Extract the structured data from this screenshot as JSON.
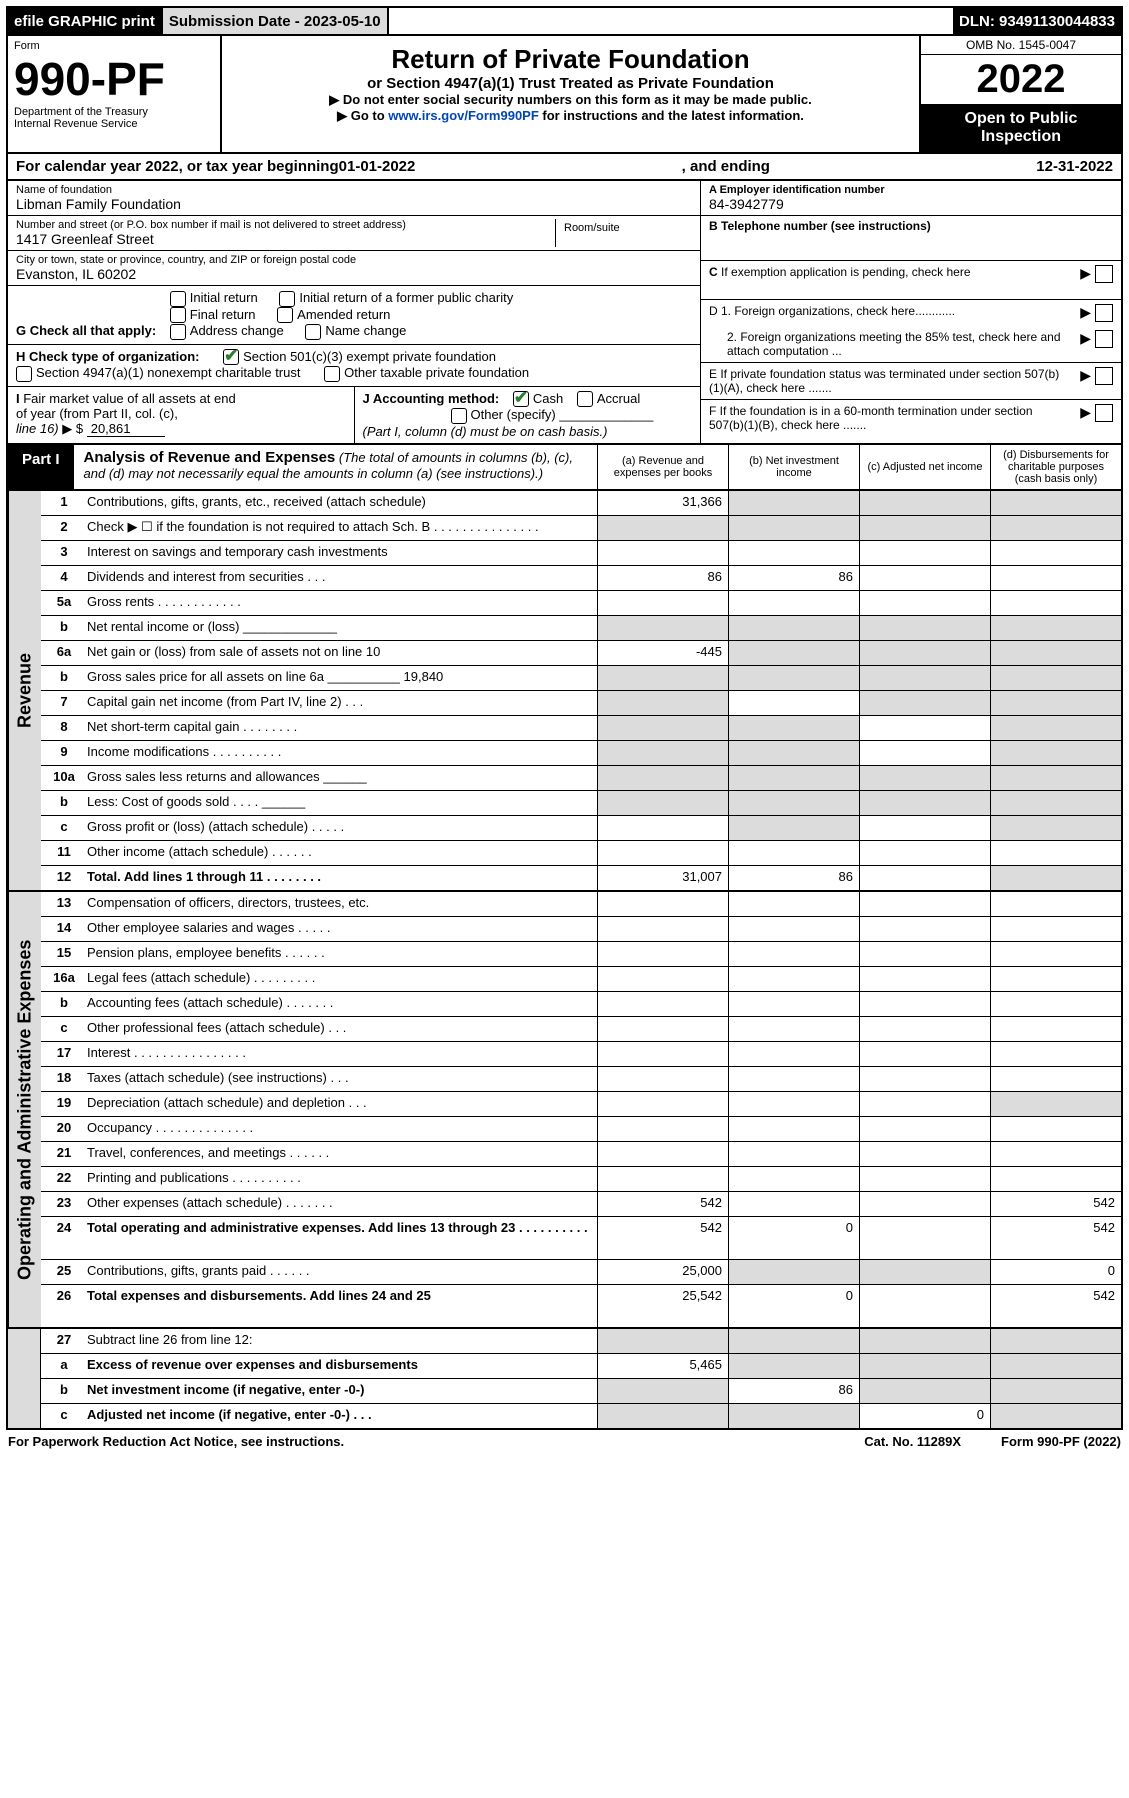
{
  "topbar": {
    "efile": "efile GRAPHIC print",
    "submission_lbl": "Submission Date - 2023-05-10",
    "dln_lbl": "DLN: 93491130044833"
  },
  "header": {
    "form_lbl": "Form",
    "form_num": "990-PF",
    "dept": "Department of the Treasury",
    "irs": "Internal Revenue Service",
    "title": "Return of Private Foundation",
    "subtitle": "or Section 4947(a)(1) Trust Treated as Private Foundation",
    "note1": "▶ Do not enter social security numbers on this form as it may be made public.",
    "note2_pre": "▶ Go to ",
    "note2_link": "www.irs.gov/Form990PF",
    "note2_post": " for instructions and the latest information.",
    "omb": "OMB No. 1545-0047",
    "year": "2022",
    "open": "Open to Public Inspection"
  },
  "calyear": {
    "pre": "For calendar year 2022, or tax year beginning ",
    "begin": "01-01-2022",
    "mid": ", and ending ",
    "end": "12-31-2022"
  },
  "entity": {
    "name_lbl": "Name of foundation",
    "name": "Libman Family Foundation",
    "addr_lbl": "Number and street (or P.O. box number if mail is not delivered to street address)",
    "addr": "1417 Greenleaf Street",
    "room_lbl": "Room/suite",
    "city_lbl": "City or town, state or province, country, and ZIP or foreign postal code",
    "city": "Evanston, IL  60202",
    "ein_lbl": "A Employer identification number",
    "ein": "84-3942779",
    "tel_lbl": "B Telephone number (see instructions)",
    "c_lbl": "C If exemption application is pending, check here",
    "d1": "D 1. Foreign organizations, check here............",
    "d2": "2. Foreign organizations meeting the 85% test, check here and attach computation ...",
    "e_lbl": "E If private foundation status was terminated under section 507(b)(1)(A), check here .......",
    "f_lbl": "F If the foundation is in a 60-month termination under section 507(b)(1)(B), check here ......."
  },
  "g": {
    "lbl": "G Check all that apply:",
    "opts": [
      "Initial return",
      "Final return",
      "Address change",
      "Initial return of a former public charity",
      "Amended return",
      "Name change"
    ]
  },
  "h": {
    "lbl": "H Check type of organization:",
    "o1": "Section 501(c)(3) exempt private foundation",
    "o2": "Section 4947(a)(1) nonexempt charitable trust",
    "o3": "Other taxable private foundation"
  },
  "i": {
    "lbl": "I Fair market value of all assets at end of year (from Part II, col. (c), line 16) ▶ $",
    "val": "20,861"
  },
  "j": {
    "lbl": "J Accounting method:",
    "o1": "Cash",
    "o2": "Accrual",
    "o3": "Other (specify)",
    "note": "(Part I, column (d) must be on cash basis.)"
  },
  "part1": {
    "tag": "Part I",
    "title": "Analysis of Revenue and Expenses",
    "note": " (The total of amounts in columns (b), (c), and (d) may not necessarily equal the amounts in column (a) (see instructions).)",
    "col_a": "(a) Revenue and expenses per books",
    "col_b": "(b) Net investment income",
    "col_c": "(c) Adjusted net income",
    "col_d": "(d) Disbursements for charitable purposes (cash basis only)"
  },
  "rows": [
    {
      "n": "1",
      "d": "Contributions, gifts, grants, etc., received (attach schedule)",
      "a": "31,366",
      "shade": [
        "b",
        "c",
        "d"
      ]
    },
    {
      "n": "2",
      "d": "Check ▶ ☐ if the foundation is not required to attach Sch. B    .   .   .   .   .   .   .   .   .   .   .   .   .   .   .",
      "shade": [
        "a",
        "b",
        "c",
        "d"
      ]
    },
    {
      "n": "3",
      "d": "Interest on savings and temporary cash investments"
    },
    {
      "n": "4",
      "d": "Dividends and interest from securities    .   .   .",
      "a": "86",
      "b": "86"
    },
    {
      "n": "5a",
      "d": "Gross rents    .   .   .   .   .   .   .   .   .   .   .   ."
    },
    {
      "n": "b",
      "d": "Net rental income or (loss)  _____________",
      "shade": [
        "a",
        "b",
        "c",
        "d"
      ]
    },
    {
      "n": "6a",
      "d": "Net gain or (loss) from sale of assets not on line 10",
      "a": "-445",
      "shade": [
        "b",
        "c",
        "d"
      ]
    },
    {
      "n": "b",
      "d": "Gross sales price for all assets on line 6a __________ 19,840",
      "shade": [
        "a",
        "b",
        "c",
        "d"
      ]
    },
    {
      "n": "7",
      "d": "Capital gain net income (from Part IV, line 2)    .   .   .",
      "shade": [
        "a",
        "c",
        "d"
      ]
    },
    {
      "n": "8",
      "d": "Net short-term capital gain   .   .   .   .   .   .   .   .",
      "shade": [
        "a",
        "b",
        "d"
      ]
    },
    {
      "n": "9",
      "d": "Income modifications   .   .   .   .   .   .   .   .   .   .",
      "shade": [
        "a",
        "b",
        "d"
      ]
    },
    {
      "n": "10a",
      "d": "Gross sales less returns and allowances   ______",
      "shade": [
        "a",
        "b",
        "c",
        "d"
      ]
    },
    {
      "n": "b",
      "d": "Less: Cost of goods sold     .   .   .   .   ______",
      "shade": [
        "a",
        "b",
        "c",
        "d"
      ]
    },
    {
      "n": "c",
      "d": "Gross profit or (loss) (attach schedule)    .   .   .   .   .",
      "shade": [
        "b",
        "d"
      ]
    },
    {
      "n": "11",
      "d": "Other income (attach schedule)    .   .   .   .   .   ."
    },
    {
      "n": "12",
      "d": "Total. Add lines 1 through 11   .   .   .   .   .   .   .   .",
      "bold": true,
      "a": "31,007",
      "b": "86",
      "shade": [
        "d"
      ]
    }
  ],
  "rows_exp": [
    {
      "n": "13",
      "d": "Compensation of officers, directors, trustees, etc."
    },
    {
      "n": "14",
      "d": "Other employee salaries and wages    .   .   .   .   ."
    },
    {
      "n": "15",
      "d": "Pension plans, employee benefits   .   .   .   .   .   ."
    },
    {
      "n": "16a",
      "d": "Legal fees (attach schedule)  .   .   .   .   .   .   .   .   ."
    },
    {
      "n": "b",
      "d": "Accounting fees (attach schedule)  .   .   .   .   .   .   ."
    },
    {
      "n": "c",
      "d": "Other professional fees (attach schedule)    .   .   ."
    },
    {
      "n": "17",
      "d": "Interest   .   .   .   .   .   .   .   .   .   .   .   .   .   .   .   ."
    },
    {
      "n": "18",
      "d": "Taxes (attach schedule) (see instructions)     .   .   ."
    },
    {
      "n": "19",
      "d": "Depreciation (attach schedule) and depletion    .   .   .",
      "shade": [
        "d"
      ]
    },
    {
      "n": "20",
      "d": "Occupancy   .   .   .   .   .   .   .   .   .   .   .   .   .   ."
    },
    {
      "n": "21",
      "d": "Travel, conferences, and meetings   .   .   .   .   .   ."
    },
    {
      "n": "22",
      "d": "Printing and publications   .   .   .   .   .   .   .   .   .   ."
    },
    {
      "n": "23",
      "d": "Other expenses (attach schedule)   .   .   .   .   .   .   .",
      "a": "542",
      "dd": "542"
    },
    {
      "n": "24",
      "d": "Total operating and administrative expenses. Add lines 13 through 23   .   .   .   .   .   .   .   .   .   .",
      "bold": true,
      "a": "542",
      "b": "0",
      "dd": "542",
      "tall": true
    },
    {
      "n": "25",
      "d": "Contributions, gifts, grants paid    .   .   .   .   .   .",
      "a": "25,000",
      "dd": "0",
      "shade": [
        "b",
        "c"
      ]
    },
    {
      "n": "26",
      "d": "Total expenses and disbursements. Add lines 24 and 25",
      "bold": true,
      "a": "25,542",
      "b": "0",
      "dd": "542",
      "tall": true
    }
  ],
  "rows_end": [
    {
      "n": "27",
      "d": "Subtract line 26 from line 12:",
      "shade": [
        "a",
        "b",
        "c",
        "d"
      ]
    },
    {
      "n": "a",
      "d": "Excess of revenue over expenses and disbursements",
      "bold": true,
      "a": "5,465",
      "shade": [
        "b",
        "c",
        "d"
      ]
    },
    {
      "n": "b",
      "d": "Net investment income (if negative, enter -0-)",
      "bold": true,
      "b": "86",
      "shade": [
        "a",
        "c",
        "d"
      ]
    },
    {
      "n": "c",
      "d": "Adjusted net income (if negative, enter -0-)    .   .   .",
      "bold": true,
      "c": "0",
      "shade": [
        "a",
        "b",
        "d"
      ]
    }
  ],
  "sections": {
    "revenue": "Revenue",
    "expenses": "Operating and Administrative Expenses"
  },
  "footer": {
    "left": "For Paperwork Reduction Act Notice, see instructions.",
    "mid": "Cat. No. 11289X",
    "right": "Form 990-PF (2022)"
  }
}
